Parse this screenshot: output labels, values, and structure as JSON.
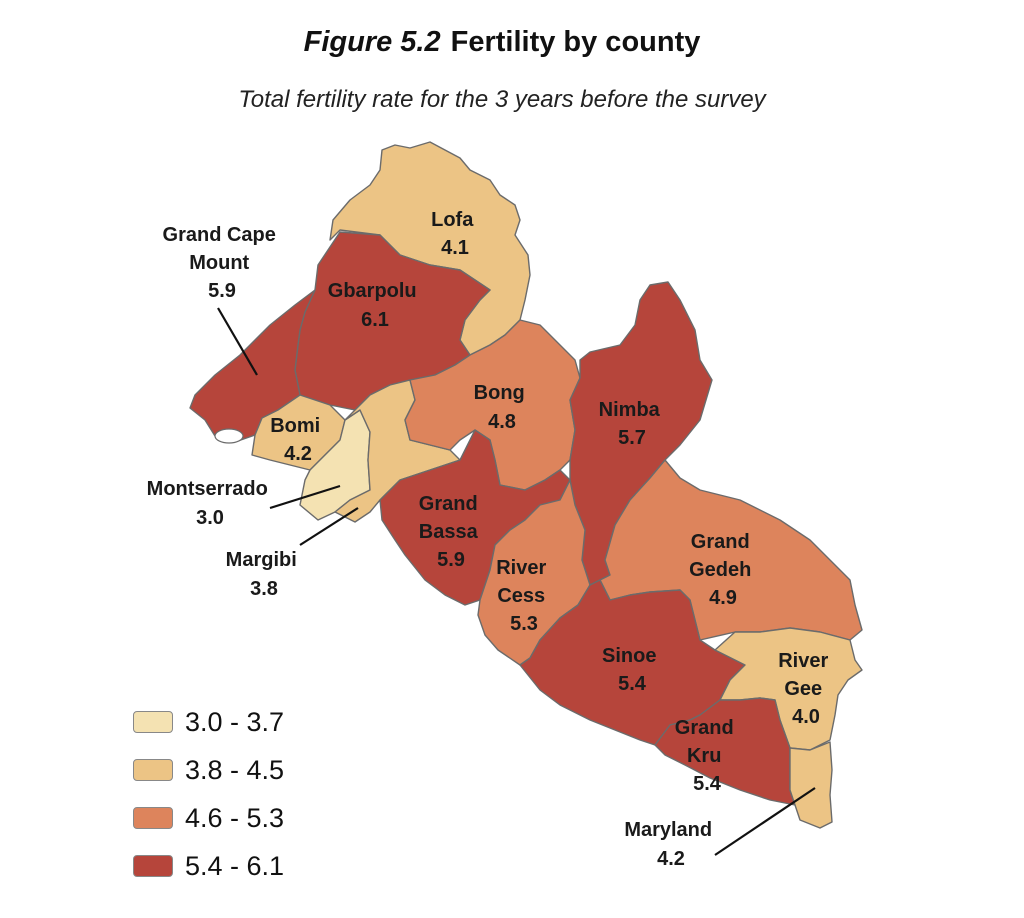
{
  "figure": {
    "number": "Figure 5.2",
    "title": "Fertility by county",
    "subtitle": "Total fertility rate for the 3 years before the survey"
  },
  "colors": {
    "class1": "#f4e2b2",
    "class2": "#ecc485",
    "class3": "#dd845c",
    "class4": "#b6453b"
  },
  "counties": {
    "lofa": {
      "name": "Lofa",
      "tfr": 4.1,
      "value": "4.1"
    },
    "gbarpolu": {
      "name": "Gbarpolu",
      "tfr": 6.1,
      "value": "6.1"
    },
    "gcm": {
      "name1": "Grand Cape",
      "name2": "Mount",
      "tfr": 5.9,
      "value": "5.9"
    },
    "bomi": {
      "name": "Bomi",
      "tfr": 4.2,
      "value": "4.2"
    },
    "montserrado": {
      "name": "Montserrado",
      "tfr": 3.0,
      "value": "3.0"
    },
    "margibi": {
      "name": "Margibi",
      "tfr": 3.8,
      "value": "3.8"
    },
    "bong": {
      "name": "Bong",
      "tfr": 4.8,
      "value": "4.8"
    },
    "nimba": {
      "name": "Nimba",
      "tfr": 5.7,
      "value": "5.7"
    },
    "grandbassa": {
      "name1": "Grand",
      "name2": "Bassa",
      "tfr": 5.9,
      "value": "5.9"
    },
    "rivercess": {
      "name1": "River",
      "name2": "Cess",
      "tfr": 5.3,
      "value": "5.3"
    },
    "grandgedeh": {
      "name1": "Grand",
      "name2": "Gedeh",
      "tfr": 4.9,
      "value": "4.9"
    },
    "sinoe": {
      "name": "Sinoe",
      "tfr": 5.4,
      "value": "5.4"
    },
    "rivergee": {
      "name1": "River",
      "name2": "Gee",
      "tfr": 4.0,
      "value": "4.0"
    },
    "grandkru": {
      "name1": "Grand",
      "name2": "Kru",
      "tfr": 5.4,
      "value": "5.4"
    },
    "maryland": {
      "name": "Maryland",
      "tfr": 4.2,
      "value": "4.2"
    }
  },
  "legend": [
    {
      "label": "3.0 - 3.7"
    },
    {
      "label": "3.8 - 4.5"
    },
    {
      "label": "4.6 - 5.3"
    },
    {
      "label": "5.4 - 6.1"
    }
  ]
}
